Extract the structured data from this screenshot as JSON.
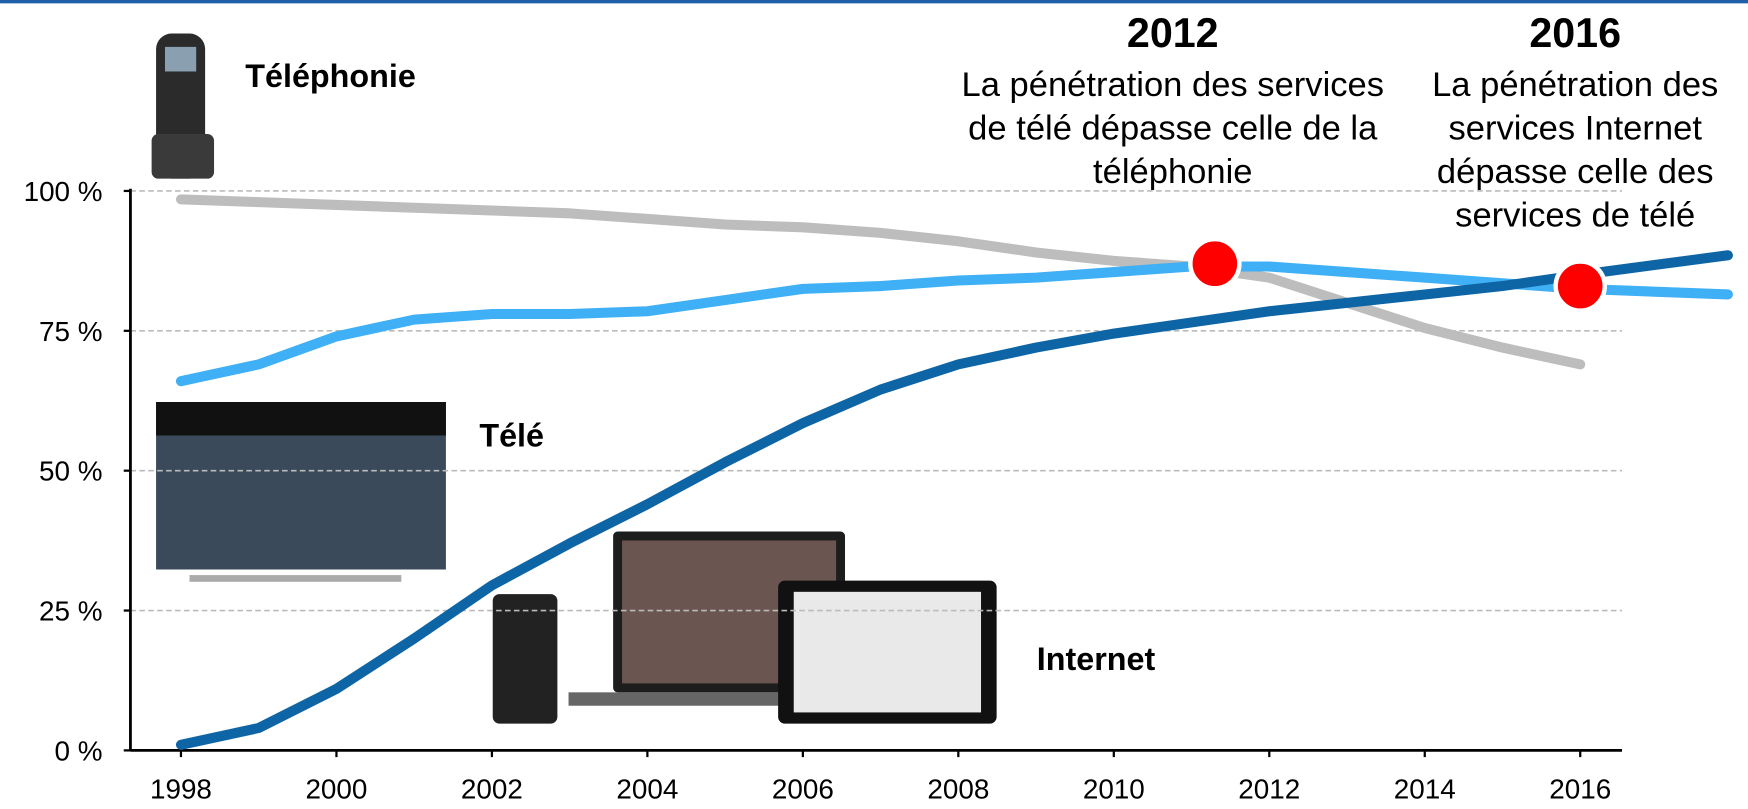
{
  "chart_data": {
    "type": "line",
    "x": [
      1998,
      1999,
      2000,
      2001,
      2002,
      2003,
      2004,
      2005,
      2006,
      2007,
      2008,
      2009,
      2010,
      2011,
      2012,
      2013,
      2014,
      2015,
      2016,
      2017.9
    ],
    "xlim": [
      1997.35,
      2017.9
    ],
    "xticks": [
      1998,
      2000,
      2002,
      2004,
      2006,
      2008,
      2010,
      2012,
      2014,
      2016
    ],
    "ylim": [
      0,
      100
    ],
    "yticks": [
      {
        "value": 0,
        "label": "0 %"
      },
      {
        "value": 25,
        "label": "25 %"
      },
      {
        "value": 50,
        "label": "50 %"
      },
      {
        "value": 75,
        "label": "75 %"
      },
      {
        "value": 100,
        "label": "100 %"
      }
    ],
    "grid": true,
    "series": [
      {
        "name": "Téléphonie",
        "color": "#bdbdbd",
        "values": [
          98.5,
          98,
          97.5,
          97,
          96.5,
          96,
          95,
          94,
          93.5,
          92.5,
          91,
          89,
          87.5,
          86.5,
          84.5,
          80,
          75.5,
          72,
          69,
          null
        ]
      },
      {
        "name": "Télé",
        "color": "#3fb0f5",
        "values": [
          66,
          69,
          74,
          77,
          78,
          78,
          78.5,
          80.5,
          82.5,
          83,
          84,
          84.5,
          85.5,
          86.5,
          86.5,
          85.5,
          84.5,
          83.5,
          82.5,
          81.5
        ]
      },
      {
        "name": "Internet",
        "color": "#0e65a6",
        "values": [
          1,
          4,
          11,
          20,
          29.5,
          37,
          44,
          51.5,
          58.5,
          64.5,
          69,
          72,
          74.5,
          76.5,
          78.5,
          80,
          81.5,
          83,
          85,
          88.5
        ]
      }
    ],
    "annotations": [
      {
        "title": "2012",
        "text_lines": [
          "La pénétration des services",
          "de télé dépasse celle de la",
          "téléphonie"
        ],
        "x": 2011.3,
        "y": 87
      },
      {
        "title": "2016",
        "text_lines": [
          "La pénétration des",
          "services Internet",
          "dépasse celle des",
          "services de télé"
        ],
        "x": 2016,
        "y": 83
      }
    ]
  }
}
